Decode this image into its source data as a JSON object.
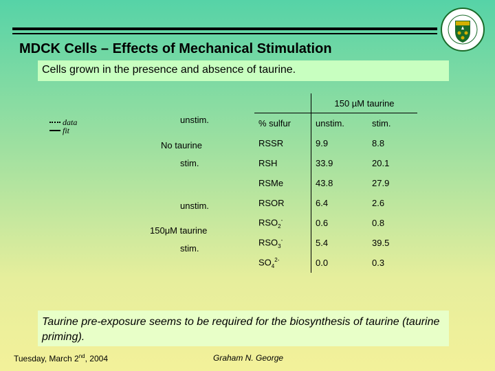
{
  "slide": {
    "title": "MDCK Cells – Effects of Mechanical Stimulation",
    "subtitle": "Cells grown in the presence and absence of taurine.",
    "conclusion": "Taurine pre-exposure seems to be required for the biosynthesis of taurine (taurine priming).",
    "date": {
      "prefix": "Tuesday, March 2",
      "suffix": "nd",
      "year": ", 2004"
    },
    "author": "Graham N. George"
  },
  "legend": {
    "data_label": "data",
    "fit_label": "fit"
  },
  "left_labels": {
    "unstim_1": "unstim.",
    "no_taurine": "No taurine",
    "stim_1": "stim.",
    "unstim_2": "unstim.",
    "taurine_150": "150μM taurine",
    "stim_2": "stim."
  },
  "table": {
    "group_header": "150 µM taurine",
    "col_headers": [
      "% sulfur",
      "unstim.",
      "stim."
    ],
    "rows": [
      {
        "species": "RSSR",
        "sub": "",
        "sup": "",
        "unstim": "9.9",
        "stim": "8.8"
      },
      {
        "species": "RSH",
        "sub": "",
        "sup": "",
        "unstim": "33.9",
        "stim": "20.1"
      },
      {
        "species": "RSMe",
        "sub": "",
        "sup": "",
        "unstim": "43.8",
        "stim": "27.9"
      },
      {
        "species": "RSOR",
        "sub": "",
        "sup": "",
        "unstim": "6.4",
        "stim": "2.6"
      },
      {
        "species": "RSO",
        "sub": "2",
        "sup": "-",
        "unstim": "0.6",
        "stim": "0.8"
      },
      {
        "species": "RSO",
        "sub": "3",
        "sup": "-",
        "unstim": "5.4",
        "stim": "39.5"
      },
      {
        "species": "SO",
        "sub": "4",
        "sup": "2-",
        "unstim": "0.0",
        "stim": "0.3"
      }
    ]
  },
  "colors": {
    "title_bar": "#000000",
    "subtitle_bg": "#c8ffc0",
    "logo_green": "#1a6b2a",
    "logo_gold": "#d4b000"
  }
}
